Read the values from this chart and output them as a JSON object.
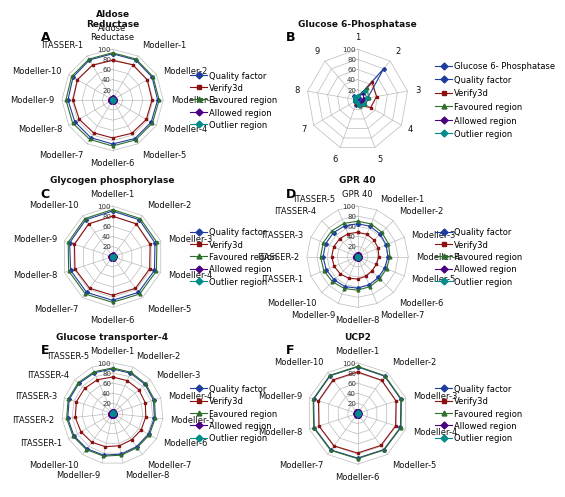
{
  "panels": [
    {
      "label": "A",
      "title": "Aldose\nReductase",
      "spokes": [
        "Aldose\nReductase",
        "Modeller-1",
        "Modeller-2",
        "Modeller-3",
        "Modeller-4",
        "Modeller-5",
        "Modeller-6",
        "Modeller-7",
        "Modeller-8",
        "Modeller-9",
        "Modeller-10",
        "ITASSER-1"
      ],
      "n_spokes": 12,
      "series": {
        "Quality factor": [
          91,
          91,
          90,
          89,
          88,
          88,
          87,
          86,
          86,
          88,
          90,
          91
        ],
        "Verify3d": [
          78,
          80,
          79,
          78,
          77,
          76,
          75,
          75,
          76,
          78,
          80,
          79
        ],
        "Favoured region": [
          93,
          93,
          92,
          92,
          91,
          91,
          91,
          90,
          91,
          92,
          93,
          93
        ],
        "Allowed region": [
          5,
          5,
          5,
          5,
          5,
          5,
          5,
          5,
          5,
          5,
          5,
          5
        ],
        "Outlier region": [
          2,
          2,
          2,
          2,
          2,
          2,
          2,
          2,
          2,
          2,
          2,
          2
        ]
      },
      "rmax": 100,
      "grid_levels": [
        20,
        40,
        60,
        80,
        100
      ],
      "legend": [
        "Quality factor",
        "Verify3d",
        "Favoured region",
        "Allowed region",
        "Outlier region"
      ]
    },
    {
      "label": "B",
      "title": "Glucose 6-Phosphatase",
      "spokes": [
        "1",
        "2",
        "3",
        "4",
        "5",
        "6",
        "7",
        "8",
        "9"
      ],
      "n_spokes": 9,
      "series": {
        "Glucose 6-\nPhosphatase": [
          5,
          5,
          5,
          5,
          5,
          5,
          5,
          5,
          5
        ],
        "Quality factor": [
          5,
          80,
          20,
          10,
          10,
          10,
          5,
          5,
          10
        ],
        "Verify3d": [
          5,
          45,
          38,
          30,
          12,
          8,
          5,
          5,
          8
        ],
        "Favoured region": [
          8,
          30,
          22,
          18,
          12,
          5,
          5,
          5,
          8
        ],
        "Allowed region": [
          5,
          18,
          12,
          10,
          8,
          5,
          5,
          5,
          5
        ],
        "Outlier region": [
          8,
          22,
          18,
          15,
          10,
          5,
          5,
          5,
          8
        ]
      },
      "rmax": 100,
      "grid_levels": [
        20,
        40,
        60,
        80,
        100
      ],
      "legend": [
        "Glucose 6-\nPhosphatase",
        "Quality factor",
        "Verify3d",
        "Favoured region",
        "Allowed region",
        "Outlier region"
      ]
    },
    {
      "label": "C",
      "title": "Glycogen phosphorylase",
      "spokes": [
        "Modeller-1",
        "Modeller-2",
        "Modeller-3",
        "Modeller-4",
        "Modeller-5",
        "Modeller-6",
        "Modeller-7",
        "Modeller-8",
        "Modeller-9",
        "Modeller-10"
      ],
      "n_spokes": 10,
      "series": {
        "Quality factor": [
          90,
          90,
          88,
          87,
          87,
          86,
          87,
          87,
          89,
          90
        ],
        "Verify3d": [
          80,
          80,
          78,
          77,
          77,
          76,
          77,
          78,
          79,
          80
        ],
        "Favoured region": [
          93,
          93,
          92,
          91,
          91,
          90,
          91,
          91,
          92,
          93
        ],
        "Allowed region": [
          5,
          5,
          5,
          5,
          5,
          5,
          5,
          5,
          5,
          5
        ],
        "Outlier region": [
          2,
          2,
          2,
          2,
          2,
          2,
          2,
          2,
          2,
          2
        ]
      },
      "rmax": 100,
      "grid_levels": [
        20,
        40,
        60,
        80,
        100
      ],
      "legend": [
        "Quality factor",
        "Verify3d",
        "Favoured region",
        "Allowed region",
        "Outlier region"
      ]
    },
    {
      "label": "D",
      "title": "GPR 40",
      "spokes": [
        "GPR 40",
        "Modeller-1",
        "Modeller-2",
        "Modeller-3",
        "Modeller-4",
        "Modeller-5",
        "Modeller-6",
        "Modeller-7",
        "Modeller-8",
        "Modeller-9",
        "Modeller-10",
        "ITASSER-1",
        "ITASSER-2",
        "ITASSER-3",
        "ITASSER-4",
        "ITASSER-5"
      ],
      "n_spokes": 16,
      "series": {
        "Quality factor": [
          65,
          65,
          63,
          61,
          60,
          58,
          58,
          60,
          62,
          64,
          65,
          67,
          68,
          68,
          67,
          66
        ],
        "Verify3d": [
          48,
          48,
          46,
          44,
          42,
          40,
          40,
          42,
          44,
          46,
          48,
          50,
          51,
          51,
          50,
          49
        ],
        "Favoured region": [
          70,
          70,
          68,
          66,
          64,
          62,
          62,
          64,
          66,
          68,
          70,
          72,
          73,
          73,
          72,
          71
        ],
        "Allowed region": [
          5,
          5,
          5,
          5,
          5,
          5,
          5,
          5,
          5,
          5,
          5,
          5,
          5,
          5,
          5,
          5
        ],
        "Outlier region": [
          2,
          2,
          2,
          2,
          2,
          2,
          2,
          2,
          2,
          2,
          2,
          2,
          2,
          2,
          2,
          2
        ]
      },
      "rmax": 100,
      "grid_levels": [
        20,
        40,
        60,
        80,
        100
      ],
      "legend": [
        "Quality factor",
        "Verify3d",
        "Favoured region",
        "Allowed region",
        "Outlier region"
      ]
    },
    {
      "label": "E",
      "title": "Glucose transporter-4",
      "spokes": [
        "Modeller-1",
        "Modeller-2",
        "Modeller-3",
        "Modeller-4",
        "Modeller-5",
        "Modeller-6",
        "Modeller-7",
        "Modeller-8",
        "Modeller-9",
        "Modeller-10",
        "ITASSER-1",
        "ITASSER-2",
        "ITASSER-3",
        "ITASSER-4",
        "ITASSER-5"
      ],
      "n_spokes": 15,
      "series": {
        "Quality factor": [
          88,
          87,
          86,
          85,
          83,
          82,
          81,
          82,
          84,
          86,
          88,
          89,
          90,
          89,
          88
        ],
        "Verify3d": [
          72,
          71,
          70,
          68,
          66,
          65,
          64,
          65,
          67,
          70,
          72,
          74,
          75,
          74,
          73
        ],
        "Favoured region": [
          90,
          89,
          88,
          87,
          85,
          84,
          83,
          84,
          86,
          88,
          90,
          91,
          92,
          91,
          90
        ],
        "Allowed region": [
          5,
          5,
          5,
          5,
          5,
          5,
          5,
          5,
          5,
          5,
          5,
          5,
          5,
          5,
          5
        ],
        "Outlier region": [
          2,
          2,
          2,
          2,
          2,
          2,
          2,
          2,
          2,
          2,
          2,
          2,
          2,
          2,
          2
        ]
      },
      "rmax": 100,
      "grid_levels": [
        20,
        40,
        60,
        80,
        100
      ],
      "legend": [
        "Quality factor",
        "Verify3d",
        "Favoured region",
        "Allowed region",
        "Outlier region"
      ]
    },
    {
      "label": "F",
      "title": "UCP2",
      "spokes": [
        "Modeller-1",
        "Modeller-2",
        "Modeller-3",
        "Modeller-4",
        "Modeller-5",
        "Modeller-6",
        "Modeller-7",
        "Modeller-8",
        "Modeller-9",
        "Modeller-10"
      ],
      "n_spokes": 10,
      "series": {
        "Quality factor": [
          92,
          91,
          90,
          89,
          88,
          88,
          89,
          90,
          91,
          92
        ],
        "Verify3d": [
          82,
          81,
          80,
          79,
          78,
          78,
          79,
          80,
          81,
          82
        ],
        "Favoured region": [
          93,
          92,
          91,
          90,
          89,
          89,
          90,
          91,
          92,
          93
        ],
        "Allowed region": [
          5,
          5,
          5,
          5,
          5,
          5,
          5,
          5,
          5,
          5
        ],
        "Outlier region": [
          2,
          2,
          2,
          2,
          2,
          2,
          2,
          2,
          2,
          2
        ]
      },
      "rmax": 100,
      "grid_levels": [
        20,
        40,
        60,
        80,
        100
      ],
      "legend": [
        "Quality factor",
        "Verify3d",
        "Favoured region",
        "Allowed region",
        "Outlier region"
      ]
    }
  ],
  "series_colors": {
    "Quality factor": "#1f3d9e",
    "Glucose 6-\nPhosphatase": "#1f3d9e",
    "Verify3d": "#8B1010",
    "Favoured region": "#2d6e2d",
    "Allowed region": "#4B0082",
    "Outlier region": "#008B8B"
  },
  "series_markers": {
    "Quality factor": "D",
    "Glucose 6-\nPhosphatase": "D",
    "Verify3d": "s",
    "Favoured region": "^",
    "Allowed region": "D",
    "Outlier region": "D"
  },
  "bg_color": "#ffffff",
  "grid_color": "#bbbbbb",
  "spoke_color": "#bbbbbb",
  "label_fs": 6,
  "title_fs": 6.5,
  "tick_fs": 5,
  "panel_label_fs": 9
}
